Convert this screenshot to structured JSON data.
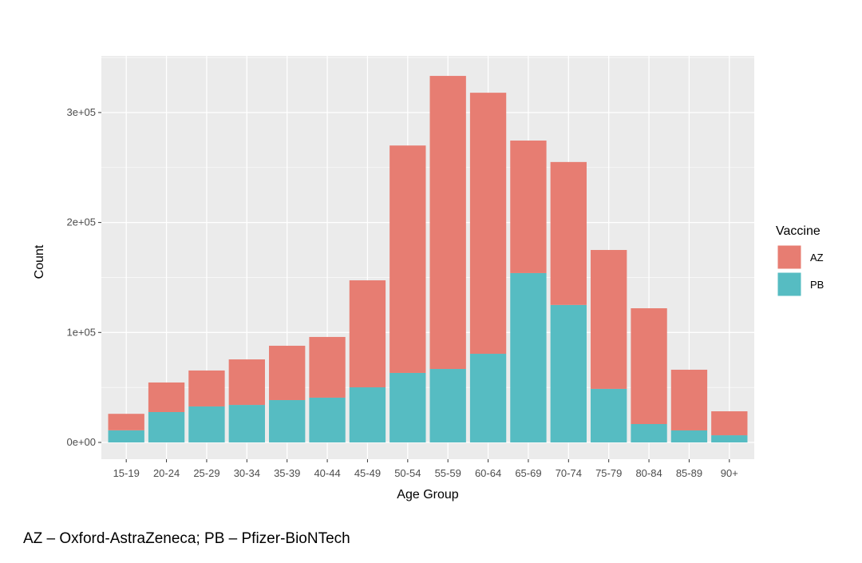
{
  "chart_data": {
    "type": "bar",
    "stacked": true,
    "title": "",
    "xlabel": "Age Group",
    "ylabel": "Count",
    "ylim": [
      -15000,
      340000
    ],
    "yticks": [
      0,
      100000,
      200000,
      300000
    ],
    "ytick_labels": [
      "0e+00",
      "1e+05",
      "2e+05",
      "3e+05"
    ],
    "grid": true,
    "categories": [
      "15-19",
      "20-24",
      "25-29",
      "30-34",
      "35-39",
      "40-44",
      "45-49",
      "50-54",
      "55-59",
      "60-64",
      "65-69",
      "70-74",
      "75-79",
      "80-84",
      "85-89",
      "90+"
    ],
    "series": [
      {
        "name": "PB",
        "color": "#56BCC2",
        "values": [
          11000,
          27600,
          32700,
          34100,
          38500,
          40700,
          50100,
          63200,
          66800,
          80600,
          154000,
          125000,
          48700,
          16700,
          10900,
          6500
        ]
      },
      {
        "name": "AZ",
        "color": "#E77D72",
        "values": [
          15000,
          26900,
          32700,
          41400,
          49400,
          55200,
          97300,
          206800,
          266500,
          237400,
          120500,
          130000,
          126300,
          105300,
          55200,
          21800
        ]
      }
    ],
    "legend": {
      "title": "Vaccine",
      "placement": "right",
      "entries": [
        "AZ",
        "PB"
      ]
    }
  },
  "caption": "AZ – Oxford-AstraZeneca; PB – Pfizer-BioNTech"
}
